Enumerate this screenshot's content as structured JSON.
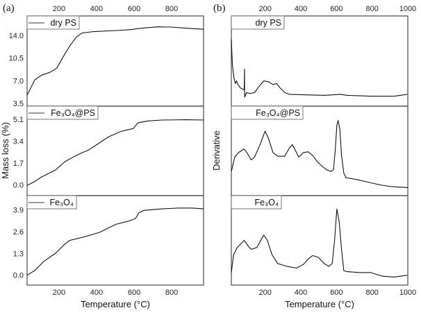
{
  "chart_data": [
    {
      "type": "line",
      "panel_label": "(a)",
      "xlabel": "Temperature (°C)",
      "ylabel": "Mass loss (%)",
      "xlim": [
        30,
        970
      ],
      "xticks": [
        200,
        400,
        600,
        800
      ],
      "subplots": [
        {
          "legend": "dry PS",
          "ylim": [
            3.07,
            17.0
          ],
          "yticks": [
            "3.5",
            "7.0",
            "10.5",
            "14.0"
          ],
          "x": [
            31,
            71,
            108,
            151,
            188,
            219,
            256,
            293,
            324,
            379,
            503,
            589,
            626,
            725,
            799,
            873,
            970
          ],
          "y": [
            4.82,
            7.14,
            7.86,
            8.29,
            8.93,
            10.54,
            12.32,
            13.76,
            14.36,
            14.57,
            14.75,
            14.9,
            15.08,
            15.32,
            15.29,
            15.11,
            14.94
          ]
        },
        {
          "legend": "Fe₃O₄@PS",
          "ylim": [
            -0.83,
            6.14
          ],
          "yticks": [
            "0.0",
            "1.7",
            "3.4",
            "5.1"
          ],
          "x": [
            31,
            71,
            108,
            182,
            231,
            281,
            324,
            355,
            466,
            528,
            596,
            620,
            676,
            749,
            873,
            970
          ],
          "y": [
            -0.03,
            0.27,
            0.63,
            1.17,
            1.81,
            2.21,
            2.52,
            2.7,
            3.76,
            4.16,
            4.4,
            4.84,
            4.99,
            5.06,
            5.08,
            5.06
          ]
        },
        {
          "legend": "Fe₃O₄",
          "ylim": [
            -0.59,
            4.74
          ],
          "yticks": [
            "0.0",
            "1.3",
            "2.6",
            "3.9"
          ],
          "x": [
            31,
            71,
            120,
            182,
            225,
            256,
            330,
            416,
            466,
            503,
            577,
            608,
            626,
            651,
            750,
            836,
            910,
            970
          ],
          "y": [
            0,
            0.28,
            0.83,
            1.31,
            1.79,
            2.07,
            2.27,
            2.55,
            2.83,
            3.03,
            3.24,
            3.38,
            3.72,
            3.86,
            3.95,
            4.0,
            4.0,
            3.95
          ]
        }
      ]
    },
    {
      "type": "line",
      "panel_label": "(b)",
      "xlabel": "Temperature (°C)",
      "ylabel": "Derivative",
      "xlim": [
        10,
        1000
      ],
      "xticks": [
        200,
        400,
        600,
        800,
        1000
      ],
      "subplots": [
        {
          "legend": "dry PS",
          "ylim": [
            0,
            1
          ],
          "x": [
            10,
            16,
            25,
            33,
            39,
            47,
            62,
            82,
            84,
            85,
            95,
            114,
            140,
            166,
            192,
            218,
            244,
            264,
            284,
            310,
            336,
            531,
            622,
            661,
            791,
            922,
            997
          ],
          "y": [
            0.74,
            0.46,
            0.31,
            0.25,
            0.28,
            0.24,
            0.2,
            0.18,
            0.41,
            0.1,
            0.15,
            0.14,
            0.15,
            0.22,
            0.28,
            0.27,
            0.24,
            0.25,
            0.2,
            0.15,
            0.13,
            0.12,
            0.13,
            0.12,
            0.11,
            0.11,
            0.13
          ]
        },
        {
          "legend": "Fe₃O₄@PS",
          "ylim": [
            0,
            1
          ],
          "x": [
            10,
            29,
            49,
            82,
            101,
            121,
            140,
            173,
            199,
            218,
            244,
            270,
            309,
            335,
            352,
            368,
            388,
            414,
            440,
            466,
            492,
            518,
            544,
            570,
            583,
            593,
            602,
            609,
            619,
            628,
            641,
            654,
            713,
            778,
            843,
            908,
            1000
          ],
          "y": [
            0.27,
            0.43,
            0.48,
            0.52,
            0.47,
            0.4,
            0.43,
            0.58,
            0.72,
            0.64,
            0.48,
            0.44,
            0.44,
            0.53,
            0.57,
            0.51,
            0.43,
            0.48,
            0.49,
            0.45,
            0.38,
            0.33,
            0.29,
            0.27,
            0.29,
            0.51,
            0.79,
            0.84,
            0.74,
            0.45,
            0.25,
            0.2,
            0.18,
            0.15,
            0.12,
            0.1,
            0.09
          ]
        },
        {
          "legend": "Fe₃O₄",
          "ylim": [
            0,
            1
          ],
          "x": [
            10,
            23,
            43,
            82,
            107,
            121,
            153,
            192,
            212,
            238,
            270,
            322,
            375,
            414,
            440,
            466,
            498,
            531,
            557,
            576,
            589,
            602,
            615,
            628,
            641,
            661,
            726,
            791,
            856,
            922,
            997
          ],
          "y": [
            0.14,
            0.34,
            0.42,
            0.5,
            0.43,
            0.4,
            0.42,
            0.56,
            0.5,
            0.34,
            0.24,
            0.21,
            0.19,
            0.23,
            0.29,
            0.33,
            0.31,
            0.24,
            0.21,
            0.24,
            0.5,
            0.85,
            0.71,
            0.4,
            0.16,
            0.15,
            0.14,
            0.14,
            0.1,
            0.09,
            0.11
          ]
        }
      ]
    }
  ]
}
